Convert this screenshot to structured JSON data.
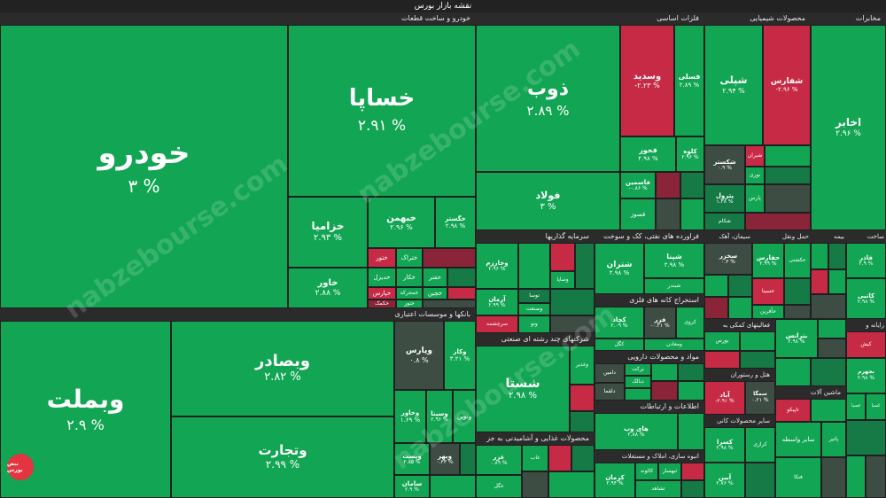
{
  "title": "نقشه بازار بورس",
  "watermark": "nabzebourse.com",
  "logo_text": "نبض بورس",
  "sectors": {
    "auto": "خودرو و ساخت قطعات",
    "banks": "بانکها و موسسات اعتباری",
    "metals": "فلزات اساسی",
    "chemicals": "محصولات شیمیایی",
    "telecom": "مخابرات",
    "investment": "سرمایه گذاریها",
    "refinery": "فراورده های نفتی، کک و سوخت",
    "cement": "سیمان، آهک",
    "transport": "حمل ونقل",
    "insurance": "بیمه",
    "construction": "ساخت",
    "mining": "استخراج کانه های فلزی",
    "holding": "شرکتهای چند رشته ای صنعتی",
    "pharma": "مواد و محصولات دارویی",
    "info": "اطلاعات و ارتباطات",
    "food": "محصولات غذایی و آشامیدنی به جز",
    "mass": "انبوه سازی، املاک و مستغلات",
    "support": "فعالیتهای کمکی به",
    "hotel": "هتل و رستوران",
    "computer": "رایانه و",
    "nonmetal": "سایر محصولات کانی",
    "machinery": "ماشین آلات",
    "other": "سایر واسطه"
  },
  "tiles": {
    "khodro": {
      "name": "خودرو",
      "pct": "۳ %"
    },
    "khapa": {
      "name": "خساپا",
      "pct": "۲.۹۱ %"
    },
    "khazamia": {
      "name": "خزامیا",
      "pct": "۲.۹۳ %"
    },
    "khavar": {
      "name": "خاور",
      "pct": "۲.۸۸ %"
    },
    "khbahman": {
      "name": "خبهمن",
      "pct": "۲.۹۶ %"
    },
    "khgostar": {
      "name": "خگستر",
      "pct": "۲.۹۸ %"
    },
    "khtor": {
      "name": "ختور"
    },
    "khtraq": {
      "name": "ختراک"
    },
    "khdizl": {
      "name": "خدیزل"
    },
    "khkar": {
      "name": "خکار"
    },
    "khfnr": {
      "name": "خفنر"
    },
    "khpars": {
      "name": "خپارس"
    },
    "khmehr": {
      "name": "خمحرکه"
    },
    "khchin": {
      "name": "خچین"
    },
    "khkomak": {
      "name": "خکمک"
    },
    "khtoor2": {
      "name": "ختور"
    },
    "vbmellat": {
      "name": "وبملت",
      "pct": "۲.۹ %"
    },
    "vbsader": {
      "name": "وبصادر",
      "pct": "۲.۸۲ %"
    },
    "vtejarat": {
      "name": "وتجارت",
      "pct": "۲.۹۹ %"
    },
    "vpars": {
      "name": "وپارس",
      "pct": "۰.۸ %"
    },
    "vsina": {
      "name": "وسینا",
      "pct": "۲.۹۶ %"
    },
    "vkhavar": {
      "name": "وخاور",
      "pct": "۱.۶۹ %"
    },
    "vkar": {
      "name": "وکار",
      "pct": "۳.۲۱ %"
    },
    "vpost": {
      "name": "وپست",
      "pct": "۲.۸۵ %"
    },
    "vamin": {
      "name": "سامان",
      "pct": "۲.۹ %"
    },
    "vnovin": {
      "name": "ونوین"
    },
    "vbahr": {
      "name": "وبهر",
      "pct": "۰.۳۳ %"
    },
    "zob": {
      "name": "ذوب",
      "pct": "۲.۸۹ %"
    },
    "foolad": {
      "name": "فولاد",
      "pct": "۳ %"
    },
    "vasadid": {
      "name": "وسدید",
      "pct": "-۲.۲۳ %"
    },
    "fasami": {
      "name": "فسلی",
      "pct": "۲.۸۹ %"
    },
    "fkhooz": {
      "name": "فخوز",
      "pct": "۲.۹۸ %"
    },
    "kalove": {
      "name": "کلوه",
      "pct": "۲.۹۶ %"
    },
    "ghasamin": {
      "name": "فاسمین",
      "pct": "-۰.۸۶ %"
    },
    "fasooz": {
      "name": "فسوز"
    },
    "shepeli": {
      "name": "شپلی",
      "pct": "۲.۹۴ %"
    },
    "shefars": {
      "name": "شفارس",
      "pct": "-۲.۹۶ %"
    },
    "shkastar": {
      "name": "شکستر",
      "pct": "۰.۹ %"
    },
    "shiran": {
      "name": "شیران"
    },
    "noori": {
      "name": "نوری"
    },
    "pars": {
      "name": "پارس"
    },
    "petrol": {
      "name": "پترول",
      "pct": "۱.۳۸ %"
    },
    "shekam": {
      "name": "شکام"
    },
    "akhaber": {
      "name": "اخابر",
      "pct": "۲.۹۶ %"
    },
    "vbazar": {
      "name": "وخارزم",
      "pct": "۲.۹۶ %"
    },
    "vsapa": {
      "name": "وساپا"
    },
    "aran": {
      "name": "آرمان",
      "pct": "۲.۹۹ %"
    },
    "vsanat": {
      "name": "وصنعت"
    },
    "toosa": {
      "name": "توسا"
    },
    "vto": {
      "name": "وتو"
    },
    "sarmaye": {
      "name": "سرچشمه"
    },
    "shatran": {
      "name": "شتران",
      "pct": "۲.۹۸ %"
    },
    "shebandar": {
      "name": "شبندر"
    },
    "shepna": {
      "name": "شپنا",
      "pct": "۲.۹۸ %"
    },
    "sakhoz": {
      "name": "سخزر",
      "pct": "۰.۳ %"
    },
    "hafars": {
      "name": "حفارس",
      "pct": "۲.۹۹ %"
    },
    "hasina": {
      "name": "حسینا"
    },
    "haqrin": {
      "name": "حآفرین"
    },
    "shasta": {
      "name": "شستا",
      "pct": "۲.۹۸ %"
    },
    "vghadir": {
      "name": "وغدیر"
    },
    "kchad": {
      "name": "کچاد",
      "pct": "۲.۰۹ %"
    },
    "fazar": {
      "name": "فزر",
      "pct": "-۰.۲۱ %"
    },
    "kgol": {
      "name": "کگل"
    },
    "vmaaden": {
      "name": "ومعادن"
    },
    "kroozi": {
      "name": "کروی"
    },
    "hami": {
      "name": "های وب",
      "pct": "۲.۸۸ %"
    },
    "darman": {
      "name": "دامین"
    },
    "barekat": {
      "name": "برکت"
    },
    "dalqma": {
      "name": "دلقما"
    },
    "dbarak": {
      "name": "دبالک"
    },
    "ghazar": {
      "name": "غزر",
      "pct": "۰.۸۹ %"
    },
    "ghegol": {
      "name": "غگل"
    },
    "ghanab": {
      "name": "غاب"
    },
    "kerman": {
      "name": "کرمان",
      "pct": "۲.۹۴ %"
    },
    "kaload": {
      "name": "کالوند"
    },
    "valbo": {
      "name": "ثبهساز"
    },
    "ashad": {
      "name": "ثشاهد"
    },
    "abad": {
      "name": "آباد",
      "pct": "-۲.۹۱ %"
    },
    "samga": {
      "name": "سمگا",
      "pct": "۰.۲۱ %"
    },
    "kisa": {
      "name": "کسرا",
      "pct": "۲.۹۸ %"
    },
    "krazi": {
      "name": "کرازی"
    },
    "abin": {
      "name": "آبین",
      "pct": "۲.۷۶ %"
    },
    "fabar": {
      "name": "فاذر",
      "pct": "۲.۹ %"
    },
    "katbi": {
      "name": "کاتبی",
      "pct": "۲.۹۸ %"
    },
    "bjahrom": {
      "name": "بجهرم",
      "pct": "۲.۹۸ %"
    },
    "kish": {
      "name": "کیش"
    },
    "kaspa": {
      "name": "فسپا"
    },
    "kaspa2": {
      "name": "کسپا"
    },
    "patir": {
      "name": "پاتیر"
    },
    "fatak": {
      "name": "فنکا"
    },
    "tonbi": {
      "name": "تاپیکو"
    },
    "bparas": {
      "name": "بترانس",
      "pct": "۲.۹۸ %"
    },
    "bporous": {
      "name": "بورس"
    },
    "tanor": {
      "name": "تاپیکو"
    },
    "vasamed": {
      "name": "واسطه"
    },
    "bkam": {
      "name": "بکام"
    },
    "tkala": {
      "name": "تکلا"
    },
    "chshina": {
      "name": "حکشتی"
    },
    "vmali": {
      "name": "ولملت"
    }
  }
}
